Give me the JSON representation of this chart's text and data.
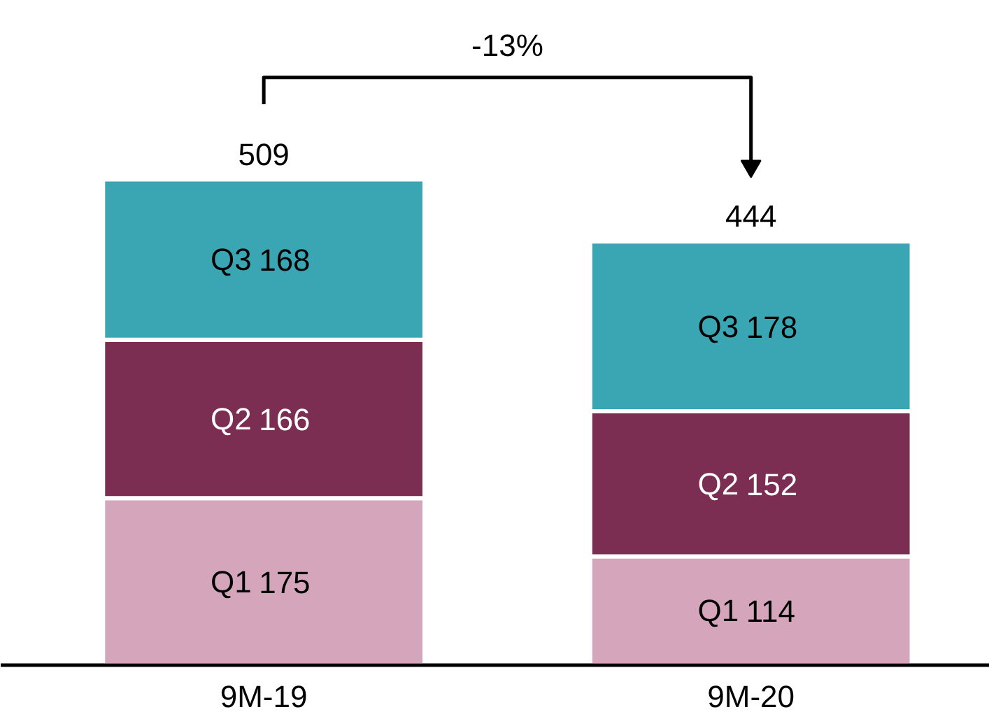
{
  "chart_data": {
    "type": "bar",
    "stacked": true,
    "categories": [
      "9M-19",
      "9M-20"
    ],
    "series": [
      {
        "name": "Q1",
        "color": "#d4a5bb",
        "values": [
          175,
          114
        ]
      },
      {
        "name": "Q2",
        "color": "#7b2d52",
        "values": [
          166,
          152
        ]
      },
      {
        "name": "Q3",
        "color": "#3aa6b4",
        "values": [
          168,
          178
        ]
      }
    ],
    "data_labels": true,
    "totals": [
      "509",
      "444"
    ],
    "annotations": [
      "-13%"
    ]
  }
}
